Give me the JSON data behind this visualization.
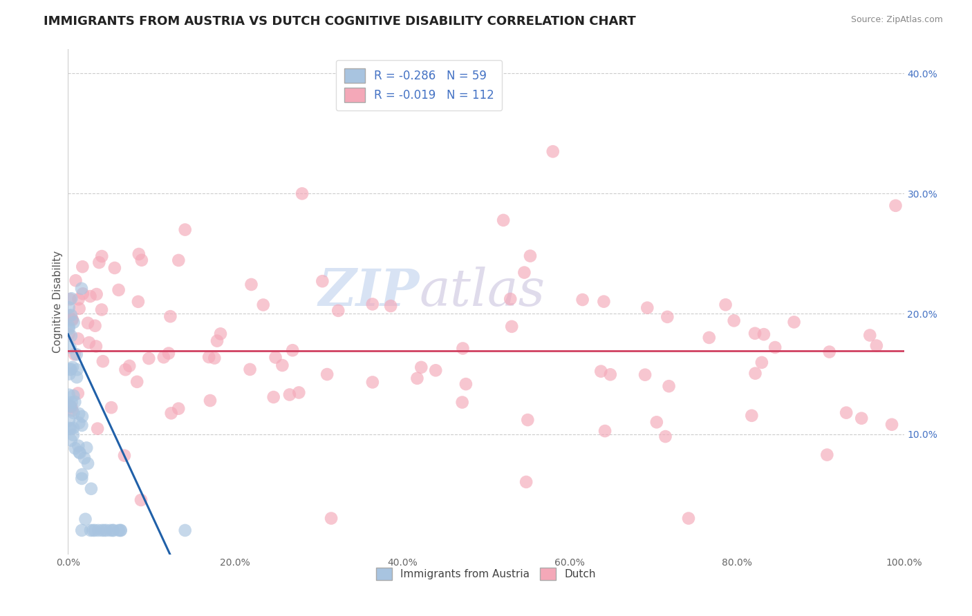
{
  "title": "IMMIGRANTS FROM AUSTRIA VS DUTCH COGNITIVE DISABILITY CORRELATION CHART",
  "source_text": "Source: ZipAtlas.com",
  "ylabel": "Cognitive Disability",
  "xlim": [
    0.0,
    1.0
  ],
  "ylim": [
    0.0,
    0.42
  ],
  "xticks": [
    0.0,
    0.2,
    0.4,
    0.6,
    0.8,
    1.0
  ],
  "xticklabels": [
    "0.0%",
    "20.0%",
    "40.0%",
    "60.0%",
    "80.0%",
    "100.0%"
  ],
  "yticks": [
    0.1,
    0.2,
    0.3,
    0.4
  ],
  "yticklabels": [
    "10.0%",
    "20.0%",
    "30.0%",
    "40.0%"
  ],
  "legend_labels": [
    "Immigrants from Austria",
    "Dutch"
  ],
  "blue_r": -0.286,
  "blue_n": 59,
  "pink_r": -0.019,
  "pink_n": 112,
  "blue_color": "#a8c4e0",
  "pink_color": "#f4a8b8",
  "blue_line_color": "#2060a8",
  "pink_line_color": "#d04060",
  "watermark_zip": "ZIP",
  "watermark_atlas": "atlas",
  "title_fontsize": 13,
  "axis_fontsize": 11,
  "tick_fontsize": 10,
  "blue_seed": 42,
  "pink_seed": 99
}
